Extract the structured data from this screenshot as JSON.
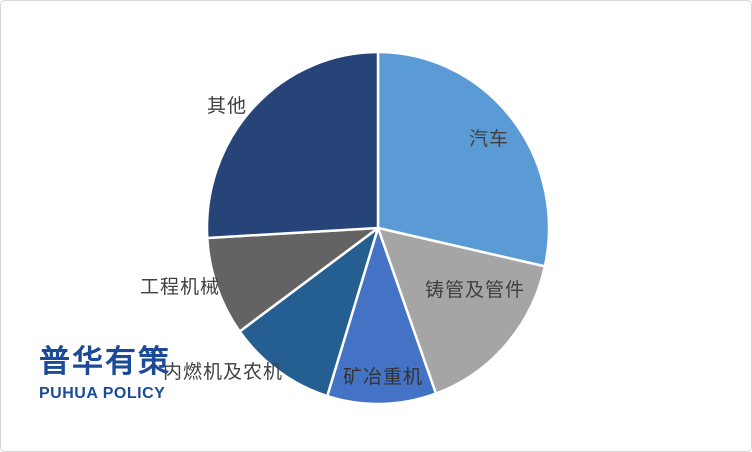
{
  "chart_data": {
    "type": "pie",
    "title": "",
    "legend": "none",
    "start_angle_deg": 0,
    "direction": "clockwise",
    "labels_style": "category-names-only",
    "slice_border_color": "#ffffff",
    "slices": [
      {
        "key": "automobile",
        "label": "汽车",
        "value": 28.5,
        "color": "#5B9BD5"
      },
      {
        "key": "cast-pipes",
        "label": "铸管及管件",
        "value": 16.0,
        "color": "#A5A5A5"
      },
      {
        "key": "mining",
        "label": "矿冶重机",
        "value": 10.3,
        "color": "#4472C4"
      },
      {
        "key": "engines-agri",
        "label": "内燃机及农机",
        "value": 10.2,
        "color": "#255E91"
      },
      {
        "key": "construction",
        "label": "工程机械",
        "value": 9.1,
        "color": "#636363"
      },
      {
        "key": "others",
        "label": "其他",
        "value": 25.9,
        "color": "#264478"
      }
    ]
  },
  "brand": {
    "cn": "普华有策",
    "en": "PUHUA POLICY",
    "color": "#1B4A99"
  }
}
